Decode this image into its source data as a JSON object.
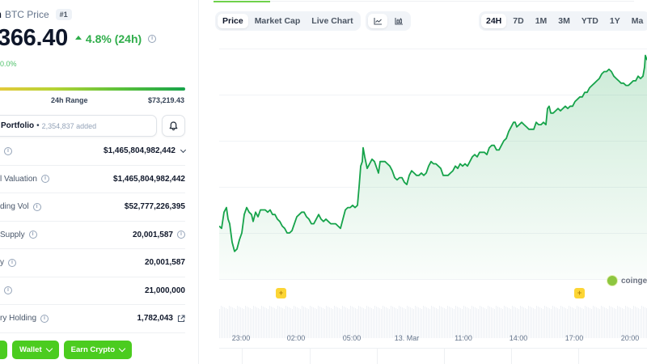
{
  "coin": {
    "name_fragment": "n",
    "subtitle": "BTC Price",
    "rank": "#1",
    "price": "366.40",
    "change_24h": "4.8% (24h)",
    "change_direction": "up",
    "sub_change": "0.0%",
    "range_label": "24h Range",
    "range_high": "$73,219.43"
  },
  "portfolio": {
    "label": "Portfolio",
    "separator": "•",
    "count": "2,354,837 added"
  },
  "stats": [
    {
      "label": "",
      "value": "$1,465,804,982,442",
      "has_info": true,
      "trailing": "chevron-down"
    },
    {
      "label": "l Valuation",
      "value": "$1,465,804,982,442",
      "has_info": true,
      "trailing": ""
    },
    {
      "label": "ding Vol",
      "value": "$52,777,226,395",
      "has_info": true,
      "trailing": ""
    },
    {
      "label": "Supply",
      "value": "20,001,587",
      "has_info": true,
      "trailing": "info"
    },
    {
      "label": "y",
      "value": "20,001,587",
      "has_info": true,
      "trailing": ""
    },
    {
      "label": "",
      "value": "21,000,000",
      "has_info": true,
      "trailing": ""
    },
    {
      "label": "ry Holding",
      "value": "1,782,043",
      "has_info": true,
      "trailing": "external-link"
    }
  ],
  "action_buttons": [
    {
      "label": ""
    },
    {
      "label": "Wallet"
    },
    {
      "label": "Earn Crypto"
    }
  ],
  "chart_tabs": [
    {
      "label": "Price",
      "active": true
    },
    {
      "label": "Market Cap",
      "active": false
    },
    {
      "label": "Live Chart",
      "active": false
    }
  ],
  "chart_types": [
    {
      "icon": "line-chart-icon",
      "active": true
    },
    {
      "icon": "candlestick-chart-icon",
      "active": false
    }
  ],
  "time_ranges": [
    {
      "label": "24H",
      "active": true
    },
    {
      "label": "7D",
      "active": false
    },
    {
      "label": "1M",
      "active": false
    },
    {
      "label": "3M",
      "active": false
    },
    {
      "label": "YTD",
      "active": false
    },
    {
      "label": "1Y",
      "active": false
    },
    {
      "label": "Ma",
      "active": false
    }
  ],
  "watermark": "coinge",
  "colors": {
    "up": "#2fad4a",
    "line": "#16a34a",
    "button_green": "#4bcc1f",
    "marker": "#fcd535"
  },
  "chart_data": {
    "type": "area",
    "title": "BTC Price (24H)",
    "xlabel": "",
    "ylabel": "",
    "x_ticks": [
      "23:00",
      "02:00",
      "05:00",
      "13. Mar",
      "11:00",
      "14:00",
      "17:00",
      "20:00"
    ],
    "x_tick_positions": [
      27,
      94,
      161,
      228,
      296,
      363,
      430,
      497
    ],
    "grid": true,
    "series": [
      {
        "name": "Price (relative y, 0=top of plot, 1=bottom)",
        "points": [
          [
            0,
            0.77
          ],
          [
            3,
            0.78
          ],
          [
            6,
            0.71
          ],
          [
            9,
            0.69
          ],
          [
            11,
            0.74
          ],
          [
            13,
            0.76
          ],
          [
            16,
            0.84
          ],
          [
            19,
            0.88
          ],
          [
            22,
            0.87
          ],
          [
            25,
            0.83
          ],
          [
            28,
            0.8
          ],
          [
            31,
            0.72
          ],
          [
            34,
            0.69
          ],
          [
            37,
            0.71
          ],
          [
            40,
            0.72
          ],
          [
            42,
            0.75
          ],
          [
            45,
            0.71
          ],
          [
            48,
            0.73
          ],
          [
            51,
            0.7
          ],
          [
            54,
            0.7
          ],
          [
            57,
            0.7
          ],
          [
            60,
            0.71
          ],
          [
            63,
            0.7
          ],
          [
            66,
            0.72
          ],
          [
            69,
            0.72
          ],
          [
            72,
            0.74
          ],
          [
            75,
            0.75
          ],
          [
            78,
            0.77
          ],
          [
            81,
            0.78
          ],
          [
            84,
            0.8
          ],
          [
            87,
            0.8
          ],
          [
            90,
            0.79
          ],
          [
            93,
            0.76
          ],
          [
            96,
            0.73
          ],
          [
            99,
            0.72
          ],
          [
            102,
            0.71
          ],
          [
            105,
            0.71
          ],
          [
            108,
            0.73
          ],
          [
            111,
            0.74
          ],
          [
            114,
            0.76
          ],
          [
            117,
            0.76
          ],
          [
            120,
            0.74
          ],
          [
            123,
            0.72
          ],
          [
            126,
            0.74
          ],
          [
            129,
            0.75
          ],
          [
            132,
            0.74
          ],
          [
            135,
            0.75
          ],
          [
            138,
            0.76
          ],
          [
            141,
            0.76
          ],
          [
            144,
            0.76
          ],
          [
            147,
            0.77
          ],
          [
            150,
            0.78
          ],
          [
            153,
            0.74
          ],
          [
            156,
            0.7
          ],
          [
            159,
            0.69
          ],
          [
            162,
            0.69
          ],
          [
            165,
            0.68
          ],
          [
            168,
            0.69
          ],
          [
            171,
            0.68
          ],
          [
            173,
            0.6
          ],
          [
            175,
            0.51
          ],
          [
            177,
            0.49
          ],
          [
            178,
            0.43
          ],
          [
            180,
            0.47
          ],
          [
            183,
            0.52
          ],
          [
            186,
            0.5
          ],
          [
            189,
            0.48
          ],
          [
            192,
            0.49
          ],
          [
            195,
            0.52
          ],
          [
            197,
            0.54
          ],
          [
            199,
            0.49
          ],
          [
            202,
            0.49
          ],
          [
            205,
            0.49
          ],
          [
            208,
            0.5
          ],
          [
            211,
            0.51
          ],
          [
            214,
            0.53
          ],
          [
            217,
            0.56
          ],
          [
            220,
            0.57
          ],
          [
            223,
            0.56
          ],
          [
            226,
            0.56
          ],
          [
            229,
            0.58
          ],
          [
            232,
            0.59
          ],
          [
            235,
            0.55
          ],
          [
            238,
            0.53
          ],
          [
            241,
            0.54
          ],
          [
            244,
            0.55
          ],
          [
            247,
            0.55
          ],
          [
            250,
            0.54
          ],
          [
            253,
            0.55
          ],
          [
            256,
            0.54
          ],
          [
            259,
            0.51
          ],
          [
            262,
            0.49
          ],
          [
            265,
            0.5
          ],
          [
            268,
            0.5
          ],
          [
            271,
            0.51
          ],
          [
            274,
            0.52
          ],
          [
            277,
            0.55
          ],
          [
            280,
            0.55
          ],
          [
            283,
            0.55
          ],
          [
            286,
            0.54
          ],
          [
            289,
            0.53
          ],
          [
            292,
            0.51
          ],
          [
            295,
            0.52
          ],
          [
            298,
            0.5
          ],
          [
            301,
            0.51
          ],
          [
            304,
            0.5
          ],
          [
            307,
            0.51
          ],
          [
            310,
            0.49
          ],
          [
            313,
            0.47
          ],
          [
            316,
            0.46
          ],
          [
            319,
            0.47
          ],
          [
            322,
            0.45
          ],
          [
            325,
            0.45
          ],
          [
            328,
            0.45
          ],
          [
            331,
            0.46
          ],
          [
            334,
            0.43
          ],
          [
            337,
            0.42
          ],
          [
            340,
            0.42
          ],
          [
            343,
            0.44
          ],
          [
            346,
            0.44
          ],
          [
            349,
            0.42
          ],
          [
            352,
            0.4
          ],
          [
            355,
            0.39
          ],
          [
            358,
            0.36
          ],
          [
            361,
            0.34
          ],
          [
            364,
            0.32
          ],
          [
            366,
            0.32
          ],
          [
            368,
            0.34
          ],
          [
            371,
            0.33
          ],
          [
            374,
            0.32
          ],
          [
            377,
            0.33
          ],
          [
            380,
            0.34
          ],
          [
            383,
            0.35
          ],
          [
            386,
            0.35
          ],
          [
            389,
            0.35
          ],
          [
            392,
            0.32
          ],
          [
            395,
            0.33
          ],
          [
            398,
            0.33
          ],
          [
            401,
            0.32
          ],
          [
            404,
            0.33
          ],
          [
            406,
            0.26
          ],
          [
            408,
            0.25
          ],
          [
            410,
            0.28
          ],
          [
            413,
            0.28
          ],
          [
            416,
            0.27
          ],
          [
            419,
            0.26
          ],
          [
            422,
            0.27
          ],
          [
            425,
            0.26
          ],
          [
            428,
            0.25
          ],
          [
            431,
            0.26
          ],
          [
            434,
            0.25
          ],
          [
            437,
            0.25
          ],
          [
            440,
            0.23
          ],
          [
            443,
            0.22
          ],
          [
            446,
            0.21
          ],
          [
            449,
            0.21
          ],
          [
            452,
            0.19
          ],
          [
            455,
            0.19
          ],
          [
            458,
            0.17
          ],
          [
            461,
            0.16
          ],
          [
            464,
            0.15
          ],
          [
            467,
            0.14
          ],
          [
            470,
            0.13
          ],
          [
            473,
            0.11
          ],
          [
            476,
            0.1
          ],
          [
            479,
            0.1
          ],
          [
            482,
            0.09
          ],
          [
            485,
            0.1
          ],
          [
            488,
            0.12
          ],
          [
            491,
            0.13
          ],
          [
            494,
            0.14
          ],
          [
            497,
            0.15
          ],
          [
            500,
            0.15
          ],
          [
            503,
            0.16
          ],
          [
            506,
            0.16
          ],
          [
            509,
            0.15
          ],
          [
            512,
            0.14
          ],
          [
            515,
            0.14
          ],
          [
            518,
            0.12
          ],
          [
            521,
            0.13
          ],
          [
            524,
            0.12
          ],
          [
            526,
            0.08
          ],
          [
            527,
            0.03
          ],
          [
            529,
            0.05
          ]
        ]
      }
    ],
    "event_markers": [
      {
        "x_pos": 70,
        "label": "+"
      },
      {
        "x_pos": 439,
        "label": "+"
      }
    ],
    "legend": "none"
  }
}
